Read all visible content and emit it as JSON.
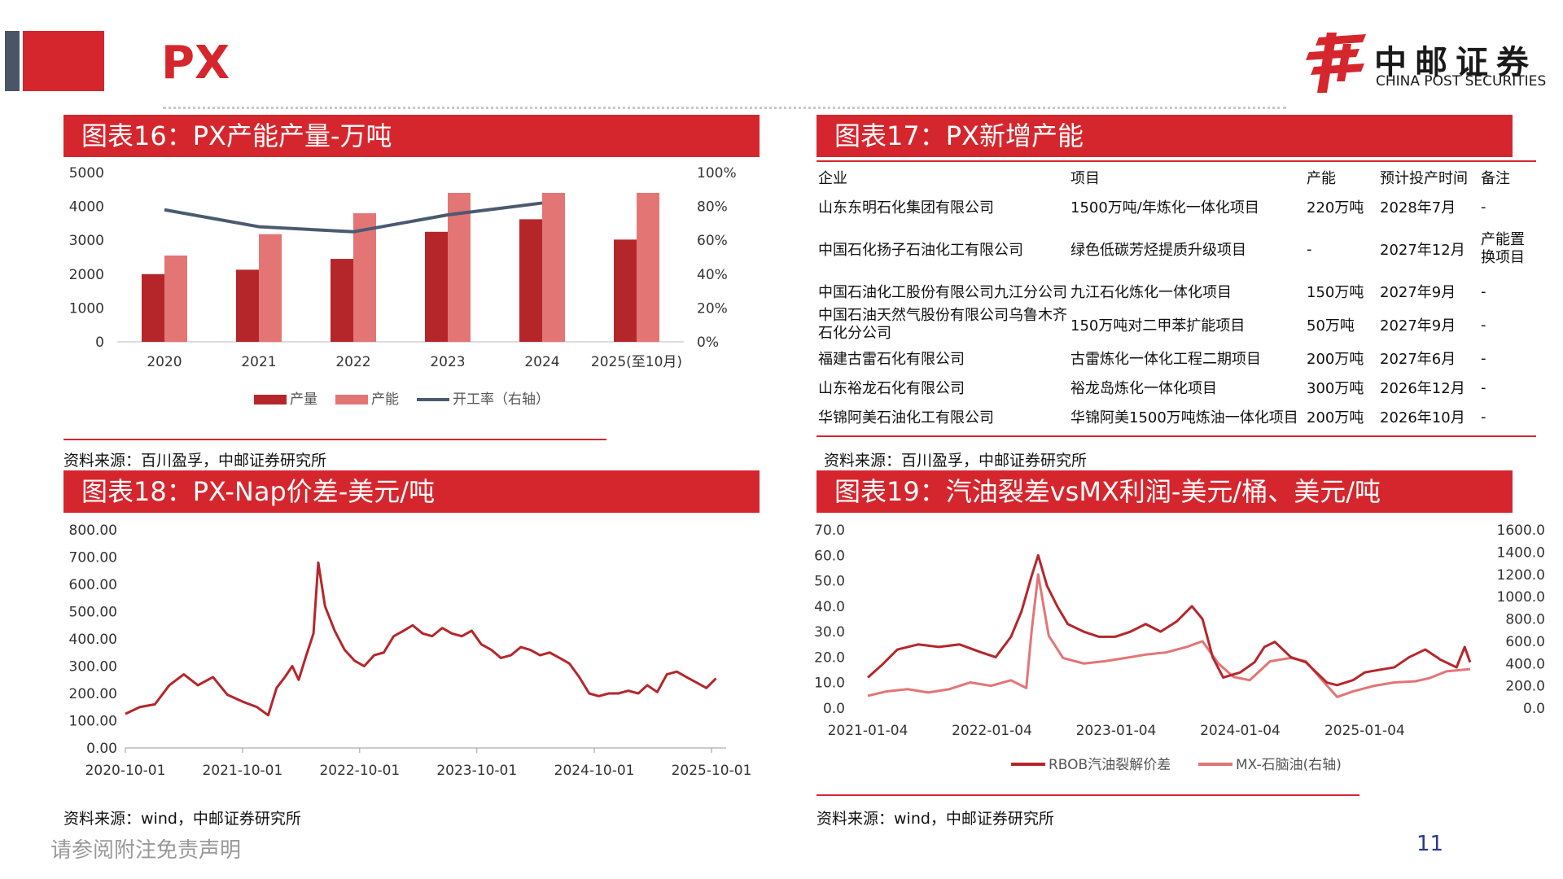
{
  "page": {
    "title": "PX",
    "logo_cn": "中邮证券",
    "logo_en": "CHINA POST SECURITIES",
    "footer_note": "请参阅附注免责声明",
    "page_number": "11",
    "colors": {
      "accent": "#d6262d",
      "dark_bar": "#4a5566",
      "navy": "#2a3a8c"
    }
  },
  "panels": {
    "fig16": {
      "title": "图表16：PX产能产量-万吨",
      "source": "资料来源：百川盈孚，中邮证券研究所"
    },
    "fig17": {
      "title": "图表17：PX新增产能",
      "source": "资料来源：百川盈孚，中邮证券研究所"
    },
    "fig18": {
      "title": "图表18：PX-Nap价差-美元/吨",
      "source": "资料来源：wind，中邮证券研究所"
    },
    "fig19": {
      "title": "图表19：汽油裂差vsMX利润-美元/桶、美元/吨",
      "source": "资料来源：wind，中邮证券研究所"
    }
  },
  "table": {
    "headers": [
      "企业",
      "项目",
      "产能",
      "预计投产时间",
      "备注"
    ],
    "rows": [
      [
        "山东东明石化集团有限公司",
        "1500万吨/年炼化一体化项目",
        "220万吨",
        "2028年7月",
        "-"
      ],
      [
        "中国石化扬子石油化工有限公司",
        "绿色低碳芳烃提质升级项目",
        "-",
        "2027年12月",
        "产能置换项目"
      ],
      [
        "中国石油化工股份有限公司九江分公司",
        "九江石化炼化一体化项目",
        "150万吨",
        "2027年9月",
        "-"
      ],
      [
        "中国石油天然气股份有限公司乌鲁木齐石化分公司",
        "150万吨对二甲苯扩能项目",
        "50万吨",
        "2027年9月",
        "-"
      ],
      [
        "福建古雷石化有限公司",
        "古雷炼化一体化工程二期项目",
        "200万吨",
        "2027年6月",
        "-"
      ],
      [
        "山东裕龙石化有限公司",
        "裕龙岛炼化一体化项目",
        "300万吨",
        "2026年12月",
        "-"
      ],
      [
        "华锦阿美石油化工有限公司",
        "华锦阿美1500万吨炼油一体化项目",
        "200万吨",
        "2026年10月",
        "-"
      ]
    ]
  },
  "chart_data": [
    {
      "id": "fig16",
      "type": "bar",
      "categories": [
        "2020",
        "2021",
        "2022",
        "2023",
        "2024",
        "2025(至10月)"
      ],
      "series": [
        {
          "name": "产量",
          "kind": "bar",
          "axis": "left",
          "color": "#b5262b",
          "values": [
            2000,
            2130,
            2450,
            3250,
            3620,
            3020
          ]
        },
        {
          "name": "产能",
          "kind": "bar",
          "axis": "left",
          "color": "#e37575",
          "values": [
            2550,
            3180,
            3800,
            4400,
            4400,
            4400
          ]
        },
        {
          "name": "开工率（右轴）",
          "kind": "line",
          "axis": "right",
          "color": "#4a5a70",
          "values": [
            78,
            68,
            65,
            75,
            82,
            null
          ]
        }
      ],
      "left_axis": {
        "min": 0,
        "max": 5000,
        "ticks": [
          "0",
          "1000",
          "2000",
          "3000",
          "4000",
          "5000"
        ]
      },
      "right_axis": {
        "min": 0,
        "max": 100,
        "ticks": [
          "0%",
          "20%",
          "40%",
          "60%",
          "80%",
          "100%"
        ]
      },
      "legend": "bottom"
    },
    {
      "id": "fig18",
      "type": "line",
      "x_ticks": [
        "2020-10-01",
        "2021-10-01",
        "2022-10-01",
        "2023-10-01",
        "2024-10-01",
        "2025-10-01"
      ],
      "y_ticks": [
        "0.00",
        "100.00",
        "200.00",
        "300.00",
        "400.00",
        "500.00",
        "600.00",
        "700.00",
        "800.00"
      ],
      "ylim": [
        0,
        800
      ],
      "series": [
        {
          "name": "PX-Nap价差",
          "color": "#b5262b",
          "points": [
            [
              "2020-10-01",
              125
            ],
            [
              "2020-11-15",
              150
            ],
            [
              "2021-01-01",
              160
            ],
            [
              "2021-02-15",
              230
            ],
            [
              "2021-04-01",
              270
            ],
            [
              "2021-05-15",
              230
            ],
            [
              "2021-07-01",
              260
            ],
            [
              "2021-08-15",
              195
            ],
            [
              "2021-10-01",
              170
            ],
            [
              "2021-11-15",
              150
            ],
            [
              "2021-12-20",
              120
            ],
            [
              "2022-01-15",
              220
            ],
            [
              "2022-02-10",
              260
            ],
            [
              "2022-03-05",
              300
            ],
            [
              "2022-03-25",
              250
            ],
            [
              "2022-04-15",
              330
            ],
            [
              "2022-05-10",
              420
            ],
            [
              "2022-05-25",
              680
            ],
            [
              "2022-06-15",
              520
            ],
            [
              "2022-07-15",
              430
            ],
            [
              "2022-08-15",
              360
            ],
            [
              "2022-09-15",
              320
            ],
            [
              "2022-10-15",
              300
            ],
            [
              "2022-11-15",
              340
            ],
            [
              "2022-12-15",
              350
            ],
            [
              "2023-01-15",
              410
            ],
            [
              "2023-02-15",
              430
            ],
            [
              "2023-03-15",
              450
            ],
            [
              "2023-04-15",
              420
            ],
            [
              "2023-05-15",
              410
            ],
            [
              "2023-06-15",
              440
            ],
            [
              "2023-07-15",
              420
            ],
            [
              "2023-08-15",
              410
            ],
            [
              "2023-09-15",
              430
            ],
            [
              "2023-10-15",
              380
            ],
            [
              "2023-11-15",
              360
            ],
            [
              "2023-12-15",
              330
            ],
            [
              "2024-01-15",
              340
            ],
            [
              "2024-02-15",
              370
            ],
            [
              "2024-03-15",
              360
            ],
            [
              "2024-04-15",
              340
            ],
            [
              "2024-05-15",
              350
            ],
            [
              "2024-06-15",
              330
            ],
            [
              "2024-07-15",
              310
            ],
            [
              "2024-08-15",
              260
            ],
            [
              "2024-09-15",
              200
            ],
            [
              "2024-10-15",
              190
            ],
            [
              "2024-11-15",
              200
            ],
            [
              "2024-12-15",
              200
            ],
            [
              "2025-01-15",
              210
            ],
            [
              "2025-02-15",
              200
            ],
            [
              "2025-03-15",
              230
            ],
            [
              "2025-04-15",
              205
            ],
            [
              "2025-05-15",
              270
            ],
            [
              "2025-06-15",
              280
            ],
            [
              "2025-07-15",
              260
            ],
            [
              "2025-08-15",
              240
            ],
            [
              "2025-09-15",
              220
            ],
            [
              "2025-10-15",
              255
            ]
          ]
        }
      ]
    },
    {
      "id": "fig19",
      "type": "line",
      "x_ticks": [
        "2021-01-04",
        "2022-01-04",
        "2023-01-04",
        "2024-01-04",
        "2025-01-04"
      ],
      "left_axis": {
        "min": 0,
        "max": 70,
        "ticks": [
          "0.0",
          "10.0",
          "20.0",
          "30.0",
          "40.0",
          "50.0",
          "60.0",
          "70.0"
        ]
      },
      "right_axis": {
        "min": 0,
        "max": 1600,
        "ticks": [
          "0.0",
          "200.0",
          "400.0",
          "600.0",
          "800.0",
          "1000.0",
          "1200.0",
          "1400.0",
          "1600.0"
        ]
      },
      "legend": "bottom",
      "series": [
        {
          "name": "RBOB汽油裂解价差",
          "axis": "left",
          "color": "#b5262b",
          "points": [
            [
              "2021-01-04",
              12
            ],
            [
              "2021-02-15",
              17
            ],
            [
              "2021-04-01",
              23
            ],
            [
              "2021-06-01",
              25
            ],
            [
              "2021-08-01",
              24
            ],
            [
              "2021-10-01",
              25
            ],
            [
              "2021-12-01",
              22
            ],
            [
              "2022-01-15",
              20
            ],
            [
              "2022-03-01",
              28
            ],
            [
              "2022-04-01",
              38
            ],
            [
              "2022-05-01",
              52
            ],
            [
              "2022-05-20",
              60
            ],
            [
              "2022-06-15",
              48
            ],
            [
              "2022-07-15",
              40
            ],
            [
              "2022-08-15",
              33
            ],
            [
              "2022-10-01",
              30
            ],
            [
              "2022-11-15",
              28
            ],
            [
              "2023-01-01",
              28
            ],
            [
              "2023-02-15",
              30
            ],
            [
              "2023-04-01",
              33
            ],
            [
              "2023-05-15",
              30
            ],
            [
              "2023-07-01",
              34
            ],
            [
              "2023-08-15",
              40
            ],
            [
              "2023-09-15",
              35
            ],
            [
              "2023-10-15",
              20
            ],
            [
              "2023-11-15",
              12
            ],
            [
              "2024-01-04",
              14
            ],
            [
              "2024-02-15",
              18
            ],
            [
              "2024-03-15",
              24
            ],
            [
              "2024-04-15",
              26
            ],
            [
              "2024-06-01",
              20
            ],
            [
              "2024-07-15",
              18
            ],
            [
              "2024-08-15",
              14
            ],
            [
              "2024-09-15",
              10
            ],
            [
              "2024-10-15",
              9
            ],
            [
              "2024-12-01",
              11
            ],
            [
              "2025-01-04",
              14
            ],
            [
              "2025-02-15",
              15
            ],
            [
              "2025-04-01",
              16
            ],
            [
              "2025-05-15",
              20
            ],
            [
              "2025-07-01",
              23
            ],
            [
              "2025-08-15",
              19
            ],
            [
              "2025-10-01",
              16
            ],
            [
              "2025-10-25",
              24
            ],
            [
              "2025-11-10",
              18
            ]
          ]
        },
        {
          "name": "MX-石脑油(右轴)",
          "axis": "right",
          "color": "#e37575",
          "points": [
            [
              "2021-01-04",
              110
            ],
            [
              "2021-03-01",
              150
            ],
            [
              "2021-05-01",
              170
            ],
            [
              "2021-07-01",
              140
            ],
            [
              "2021-09-01",
              170
            ],
            [
              "2021-11-01",
              230
            ],
            [
              "2022-01-01",
              200
            ],
            [
              "2022-03-01",
              250
            ],
            [
              "2022-04-15",
              180
            ],
            [
              "2022-05-01",
              700
            ],
            [
              "2022-05-20",
              1200
            ],
            [
              "2022-06-20",
              650
            ],
            [
              "2022-08-01",
              450
            ],
            [
              "2022-10-01",
              400
            ],
            [
              "2022-12-01",
              420
            ],
            [
              "2023-02-01",
              450
            ],
            [
              "2023-04-01",
              480
            ],
            [
              "2023-06-01",
              500
            ],
            [
              "2023-08-01",
              550
            ],
            [
              "2023-09-15",
              600
            ],
            [
              "2023-11-01",
              400
            ],
            [
              "2023-12-15",
              280
            ],
            [
              "2024-02-01",
              250
            ],
            [
              "2024-04-01",
              420
            ],
            [
              "2024-06-01",
              450
            ],
            [
              "2024-07-15",
              420
            ],
            [
              "2024-09-01",
              250
            ],
            [
              "2024-10-15",
              100
            ],
            [
              "2024-12-01",
              150
            ],
            [
              "2025-02-01",
              200
            ],
            [
              "2025-04-01",
              230
            ],
            [
              "2025-06-01",
              240
            ],
            [
              "2025-07-15",
              270
            ],
            [
              "2025-09-01",
              330
            ],
            [
              "2025-11-10",
              350
            ]
          ]
        }
      ]
    }
  ]
}
